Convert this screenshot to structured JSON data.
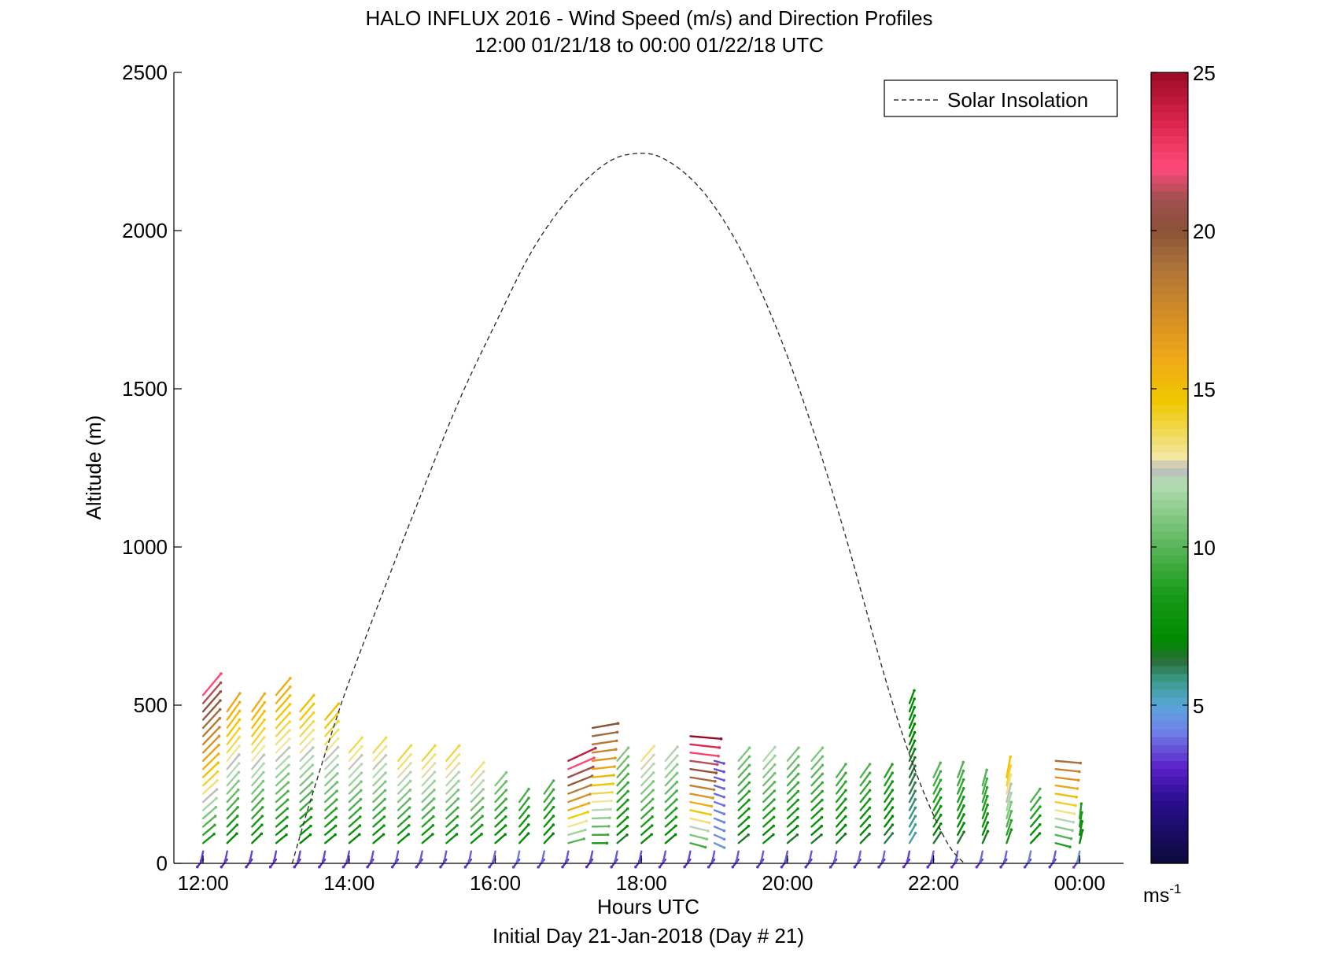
{
  "chart_data": {
    "type": "quiver",
    "title": "HALO INFLUX 2016 - Wind Speed (m/s) and Direction Profiles",
    "subtitle": "12:00 01/21/18 to 00:00 01/22/18  UTC",
    "xlabel": "Hours UTC",
    "footer": "Initial Day 21-Jan-2018 (Day # 21)",
    "ylabel": "Altitude (m)",
    "xlim": [
      11.6,
      24.6
    ],
    "ylim": [
      0,
      2500
    ],
    "x_ticks": [
      12,
      14,
      16,
      18,
      20,
      22,
      24
    ],
    "x_tick_labels": [
      "12:00",
      "14:00",
      "16:00",
      "18:00",
      "20:00",
      "22:00",
      "00:00"
    ],
    "y_ticks": [
      0,
      500,
      1000,
      1500,
      2000,
      2500
    ],
    "y_tick_labels": [
      "0",
      "500",
      "1000",
      "1500",
      "2000",
      "2500"
    ],
    "legend": {
      "entries": [
        "Solar Insolation"
      ],
      "placement": "top-right"
    },
    "colorbar": {
      "range": [
        0,
        25
      ],
      "ticks": [
        5,
        10,
        15,
        20,
        25
      ],
      "tick_labels": [
        "5",
        "10",
        "15",
        "20",
        "25"
      ],
      "unit_base": "ms",
      "unit_exp": "-1",
      "stops": [
        {
          "v": 0,
          "c": "#0b0a3a"
        },
        {
          "v": 2,
          "c": "#2a0e8e"
        },
        {
          "v": 3,
          "c": "#5a1ec8"
        },
        {
          "v": 4.2,
          "c": "#6f82e8"
        },
        {
          "v": 5,
          "c": "#5aa6d8"
        },
        {
          "v": 5.8,
          "c": "#3a9a8a"
        },
        {
          "v": 6.4,
          "c": "#2a6e3a"
        },
        {
          "v": 7,
          "c": "#008a00"
        },
        {
          "v": 8.5,
          "c": "#189a18"
        },
        {
          "v": 10,
          "c": "#58b458"
        },
        {
          "v": 12,
          "c": "#b4dcb4"
        },
        {
          "v": 12.5,
          "c": "#bcbcbc"
        },
        {
          "v": 12.8,
          "c": "#f4e8a8"
        },
        {
          "v": 13.6,
          "c": "#f0da5a"
        },
        {
          "v": 14.6,
          "c": "#f0c800"
        },
        {
          "v": 16,
          "c": "#f0a818"
        },
        {
          "v": 17.5,
          "c": "#d08a28"
        },
        {
          "v": 19,
          "c": "#a8703c"
        },
        {
          "v": 20,
          "c": "#8a5236"
        },
        {
          "v": 21,
          "c": "#a05050"
        },
        {
          "v": 22,
          "c": "#ff4a7a"
        },
        {
          "v": 23.5,
          "c": "#d8244a"
        },
        {
          "v": 25,
          "c": "#9a0a24"
        }
      ]
    },
    "solar_insolation_curve": {
      "x": [
        13.22,
        13.4,
        13.6,
        13.8,
        14.0,
        14.5,
        15.0,
        15.5,
        16.0,
        16.5,
        17.0,
        17.5,
        17.9,
        18.3,
        18.8,
        19.3,
        19.8,
        20.3,
        20.8,
        21.3,
        21.6,
        21.9,
        22.2,
        22.42
      ],
      "y": [
        0,
        145,
        295,
        440,
        575,
        880,
        1175,
        1460,
        1705,
        1935,
        2100,
        2210,
        2243,
        2228,
        2135,
        1965,
        1720,
        1405,
        1030,
        615,
        390,
        205,
        60,
        0
      ]
    },
    "wind_profiles": {
      "arrow_step_m": 26,
      "profiles": [
        {
          "t": 12.0,
          "top": 540,
          "speed_top": 22,
          "dir": 40
        },
        {
          "t": 12.33,
          "top": 480,
          "speed_top": 16,
          "dir": 35
        },
        {
          "t": 12.67,
          "top": 490,
          "speed_top": 16,
          "dir": 35
        },
        {
          "t": 13.0,
          "top": 535,
          "speed_top": 16,
          "dir": 40
        },
        {
          "t": 13.33,
          "top": 480,
          "speed_top": 15,
          "dir": 40
        },
        {
          "t": 13.67,
          "top": 460,
          "speed_top": 15,
          "dir": 40
        },
        {
          "t": 14.0,
          "top": 370,
          "speed_top": 14,
          "dir": 40
        },
        {
          "t": 14.33,
          "top": 370,
          "speed_top": 14,
          "dir": 40
        },
        {
          "t": 14.67,
          "top": 330,
          "speed_top": 14,
          "dir": 40
        },
        {
          "t": 15.0,
          "top": 330,
          "speed_top": 14,
          "dir": 40
        },
        {
          "t": 15.33,
          "top": 330,
          "speed_top": 14,
          "dir": 40
        },
        {
          "t": 15.67,
          "top": 280,
          "speed_top": 13.5,
          "dir": 40
        },
        {
          "t": 16.0,
          "top": 250,
          "speed_top": 11,
          "dir": 40
        },
        {
          "t": 16.33,
          "top": 210,
          "speed_top": 10,
          "dir": 35
        },
        {
          "t": 16.67,
          "top": 230,
          "speed_top": 10,
          "dir": 35
        },
        {
          "t": 17.0,
          "top": 340,
          "speed_top": 24,
          "dir": 65
        },
        {
          "t": 17.33,
          "top": 430,
          "speed_top": 20,
          "dir": 80
        },
        {
          "t": 17.67,
          "top": 330,
          "speed_top": 11,
          "dir": 40
        },
        {
          "t": 18.0,
          "top": 340,
          "speed_top": 13.5,
          "dir": 40
        },
        {
          "t": 18.33,
          "top": 340,
          "speed_top": 12.5,
          "dir": 40
        },
        {
          "t": 18.67,
          "top": 420,
          "speed_top": 25,
          "dir": 95
        },
        {
          "t": 19.0,
          "top": 330,
          "speed_top": 3.5,
          "dir": 105
        },
        {
          "t": 19.33,
          "top": 330,
          "speed_top": 11,
          "dir": 40
        },
        {
          "t": 19.67,
          "top": 330,
          "speed_top": 12,
          "dir": 40
        },
        {
          "t": 20.0,
          "top": 330,
          "speed_top": 11,
          "dir": 40
        },
        {
          "t": 20.33,
          "top": 330,
          "speed_top": 11,
          "dir": 40
        },
        {
          "t": 20.67,
          "top": 280,
          "speed_top": 10,
          "dir": 35
        },
        {
          "t": 21.0,
          "top": 280,
          "speed_top": 10,
          "dir": 35
        },
        {
          "t": 21.33,
          "top": 280,
          "speed_top": 9,
          "dir": 30
        },
        {
          "t": 21.67,
          "top": 530,
          "speed_top": 7.5,
          "dir": 20
        },
        {
          "t": 22.0,
          "top": 280,
          "speed_top": 10,
          "dir": 25
        },
        {
          "t": 22.33,
          "top": 280,
          "speed_top": 10,
          "dir": 20
        },
        {
          "t": 22.67,
          "top": 250,
          "speed_top": 10,
          "dir": 15
        },
        {
          "t": 23.0,
          "top": 280,
          "speed_top": 15,
          "dir": 10
        },
        {
          "t": 23.33,
          "top": 200,
          "speed_top": 10,
          "dir": 35
        },
        {
          "t": 23.67,
          "top": 330,
          "speed_top": 19,
          "dir": 95
        },
        {
          "t": 24.0,
          "top": 160,
          "speed_top": 9,
          "dir": 5
        }
      ]
    }
  }
}
